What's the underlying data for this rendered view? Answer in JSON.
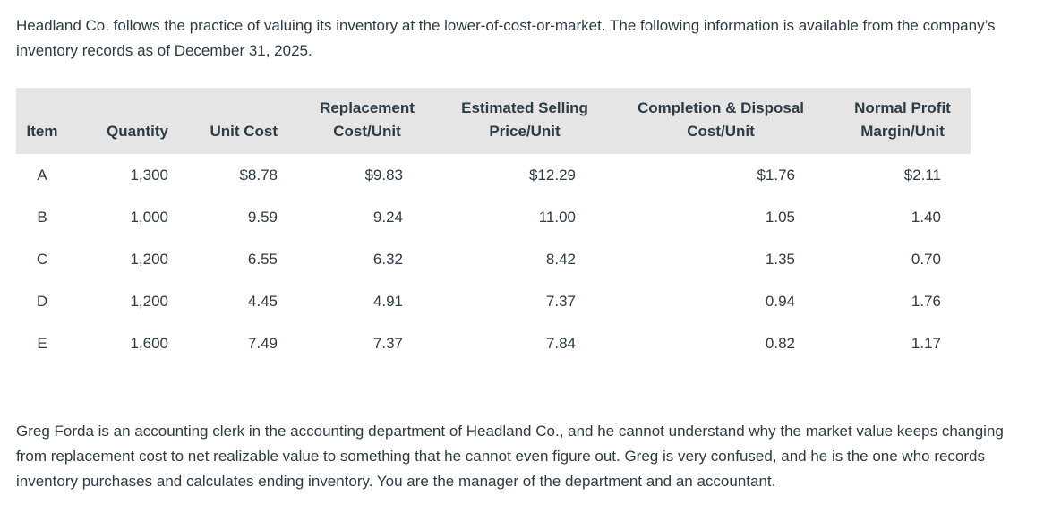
{
  "colors": {
    "text": "#2d3b45",
    "table_header_background": "#e5e5e5",
    "page_background": "#ffffff"
  },
  "intro": "Headland Co. follows the practice of valuing its inventory at the lower-of-cost-or-market. The following information is available from the company’s inventory records as of December 31, 2025.",
  "table": {
    "columns": [
      {
        "name": "item",
        "lines": [
          "Item"
        ]
      },
      {
        "name": "quantity",
        "lines": [
          "Quantity"
        ]
      },
      {
        "name": "unit_cost",
        "lines": [
          "Unit Cost"
        ]
      },
      {
        "name": "replacement_cost",
        "lines": [
          "Replacement",
          "Cost/Unit"
        ]
      },
      {
        "name": "estimated_selling_price",
        "lines": [
          "Estimated Selling",
          "Price/Unit"
        ]
      },
      {
        "name": "completion_disposal_cost",
        "lines": [
          "Completion & Disposal",
          "Cost/Unit"
        ]
      },
      {
        "name": "normal_profit_margin",
        "lines": [
          "Normal Profit",
          "Margin/Unit"
        ]
      }
    ],
    "rows": [
      [
        "A",
        "1,300",
        "$8.78",
        "$9.83",
        "$12.29",
        "$1.76",
        "$2.11"
      ],
      [
        "B",
        "1,000",
        "9.59",
        "9.24",
        "11.00",
        "1.05",
        "1.40"
      ],
      [
        "C",
        "1,200",
        "6.55",
        "6.32",
        "8.42",
        "1.35",
        "0.70"
      ],
      [
        "D",
        "1,200",
        "4.45",
        "4.91",
        "7.37",
        "0.94",
        "1.76"
      ],
      [
        "E",
        "1,600",
        "7.49",
        "7.37",
        "7.84",
        "0.82",
        "1.17"
      ]
    ]
  },
  "narrative": "Greg Forda is an accounting clerk in the accounting department of Headland Co., and he cannot understand why the market value keeps changing from replacement cost to net realizable value to something that he cannot even figure out. Greg is very confused, and he is the one who records inventory purchases and calculates ending inventory. You are the manager of the department and an accountant."
}
